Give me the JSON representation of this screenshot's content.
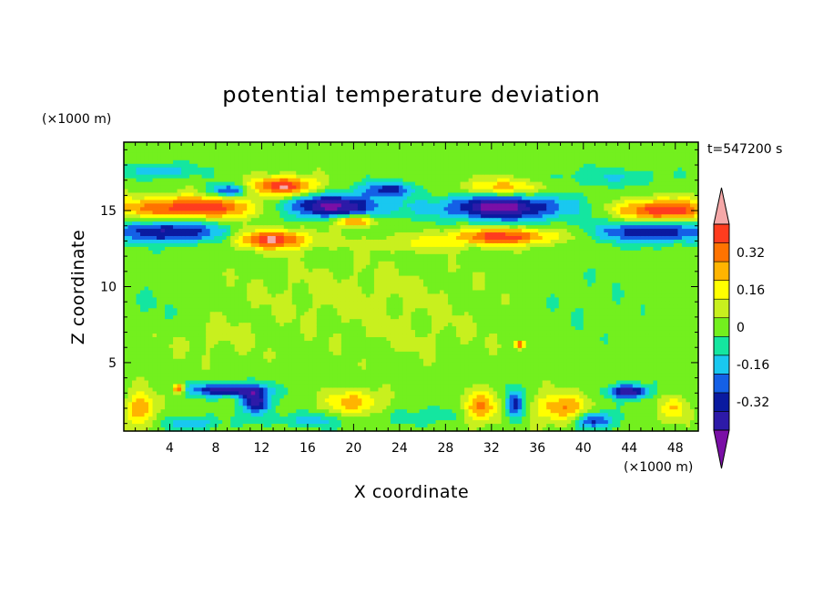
{
  "chart_data": {
    "type": "heatmap",
    "title": "potential temperature deviation",
    "xlabel": "X coordinate",
    "ylabel": "Z coordinate",
    "x_unit": "(×1000 m)",
    "y_unit": "(×1000 m)",
    "time_label": "t=547200 s",
    "xlim": [
      0,
      50
    ],
    "ylim": [
      0.5,
      19.5
    ],
    "x_ticks": [
      4,
      8,
      12,
      16,
      20,
      24,
      28,
      32,
      36,
      40,
      44,
      48
    ],
    "y_ticks": [
      5,
      10,
      15
    ],
    "colorbar": {
      "levels": [
        -0.48,
        -0.4,
        -0.32,
        -0.24,
        -0.16,
        -0.08,
        0,
        0.08,
        0.16,
        0.24,
        0.32,
        0.4,
        0.48
      ],
      "colors": [
        "#7a0fa6",
        "#2d1aa8",
        "#0a1aa0",
        "#1460e6",
        "#19c8f0",
        "#14e6a0",
        "#73f01e",
        "#c8f01e",
        "#ffff00",
        "#ffb400",
        "#ff7300",
        "#ff3c1e",
        "#f5a8a8"
      ],
      "tick_labels": [
        "0.32",
        "0.16",
        "0",
        "-0.16",
        "-0.32"
      ],
      "tick_values": [
        0.32,
        0.16,
        0,
        -0.16,
        -0.32
      ]
    },
    "features": [
      {
        "x": 6,
        "z": 15.2,
        "rx": 8,
        "rz": 0.9,
        "v": 0.45
      },
      {
        "x": 47,
        "z": 15.0,
        "rx": 5,
        "rz": 0.9,
        "v": 0.45
      },
      {
        "x": 14,
        "z": 16.6,
        "rx": 3.5,
        "rz": 0.8,
        "v": 0.45
      },
      {
        "x": 13,
        "z": 13.1,
        "rx": 4,
        "rz": 0.8,
        "v": 0.44
      },
      {
        "x": 33,
        "z": 13.3,
        "rx": 6,
        "rz": 0.7,
        "v": 0.4
      },
      {
        "x": 20,
        "z": 14.3,
        "rx": 2,
        "rz": 0.5,
        "v": 0.4
      },
      {
        "x": 33,
        "z": 16.5,
        "rx": 5,
        "rz": 0.7,
        "v": 0.25
      },
      {
        "x": 4,
        "z": 13.6,
        "rx": 6,
        "rz": 0.9,
        "v": -0.38
      },
      {
        "x": 46,
        "z": 13.6,
        "rx": 6,
        "rz": 0.9,
        "v": -0.38
      },
      {
        "x": 18,
        "z": 15.3,
        "rx": 6,
        "rz": 1.0,
        "v": -0.47
      },
      {
        "x": 33,
        "z": 15.2,
        "rx": 7,
        "rz": 1.1,
        "v": -0.47
      },
      {
        "x": 23,
        "z": 16.4,
        "rx": 3,
        "rz": 0.6,
        "v": -0.3
      },
      {
        "x": 9,
        "z": 16.3,
        "rx": 2,
        "rz": 0.5,
        "v": -0.3
      },
      {
        "x": 3,
        "z": 17.6,
        "rx": 4,
        "rz": 0.6,
        "v": -0.18
      },
      {
        "x": 42,
        "z": 17.2,
        "rx": 6,
        "rz": 0.7,
        "v": -0.12
      },
      {
        "x": 25,
        "z": 12.8,
        "rx": 6,
        "rz": 0.6,
        "v": 0.12
      },
      {
        "x": 1.5,
        "z": 2.0,
        "rx": 1.5,
        "rz": 1.4,
        "v": 0.3
      },
      {
        "x": 20,
        "z": 2.4,
        "rx": 3,
        "rz": 1.0,
        "v": 0.25
      },
      {
        "x": 31,
        "z": 2.0,
        "rx": 2,
        "rz": 1.3,
        "v": 0.3
      },
      {
        "x": 38,
        "z": 2.0,
        "rx": 3,
        "rz": 1.2,
        "v": 0.28
      },
      {
        "x": 48,
        "z": 2.0,
        "rx": 1.5,
        "rz": 1.0,
        "v": 0.2
      },
      {
        "x": 9,
        "z": 3.2,
        "rx": 4,
        "rz": 0.5,
        "v": -0.45
      },
      {
        "x": 11.5,
        "z": 2.4,
        "rx": 1.5,
        "rz": 1.0,
        "v": -0.45
      },
      {
        "x": 44,
        "z": 3.1,
        "rx": 2,
        "rz": 0.6,
        "v": -0.45
      },
      {
        "x": 34,
        "z": 2.2,
        "rx": 1,
        "rz": 1.2,
        "v": -0.35
      },
      {
        "x": 41,
        "z": 1.2,
        "rx": 2,
        "rz": 0.7,
        "v": -0.35
      },
      {
        "x": 6,
        "z": 1.0,
        "rx": 3,
        "rz": 0.6,
        "v": -0.18
      },
      {
        "x": 16,
        "z": 1.2,
        "rx": 4,
        "rz": 0.6,
        "v": -0.15
      },
      {
        "x": 27,
        "z": 1.5,
        "rx": 4,
        "rz": 0.8,
        "v": -0.1
      },
      {
        "x": 4.8,
        "z": 3.3,
        "rx": 0.6,
        "rz": 0.35,
        "v": 0.45
      },
      {
        "x": 34.5,
        "z": 6.2,
        "rx": 0.5,
        "rz": 0.3,
        "v": 0.45
      },
      {
        "x": 20,
        "z": 9.5,
        "rx": 14,
        "rz": 3,
        "v": 0.06
      },
      {
        "x": 8,
        "z": 6.5,
        "rx": 6,
        "rz": 1.8,
        "v": 0.05
      },
      {
        "x": 26,
        "z": 6.5,
        "rx": 9,
        "rz": 2,
        "v": 0.04
      },
      {
        "x": 3,
        "z": 9,
        "rx": 4,
        "rz": 2,
        "v": -0.04
      },
      {
        "x": 40,
        "z": 9,
        "rx": 6,
        "rz": 3,
        "v": -0.03
      }
    ]
  }
}
